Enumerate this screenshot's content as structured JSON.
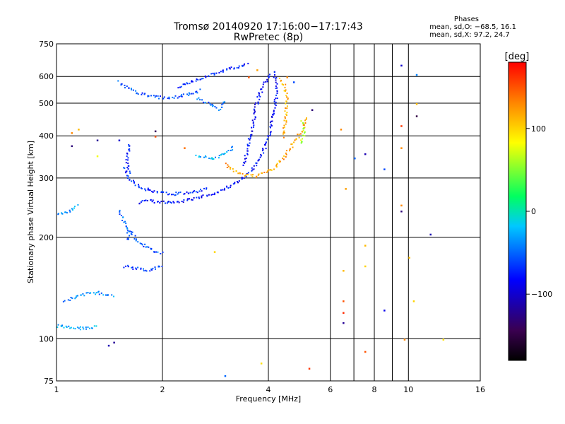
{
  "header": {
    "title": "Tromsø 20140920 17:16:00−17:17:43",
    "subtitle": "RwPretec (8p)"
  },
  "stats": {
    "heading": "Phases",
    "line_o": "mean, sd,O: −68.5, 16.1",
    "line_x": "mean, sd,X:  97.2, 24.7"
  },
  "chart_data": {
    "type": "scatter",
    "title": "Tromsø 20140920 17:16:00−17:17:43",
    "subtitle": "RwPretec (8p)",
    "xlabel": "Frequency [MHz]",
    "ylabel": "Stationary phase Virtual Height [km]",
    "x_scale": "log",
    "y_scale": "log",
    "xlim": [
      1,
      16
    ],
    "ylim": [
      75,
      750
    ],
    "x_ticks": [
      1,
      2,
      4,
      6,
      8,
      10,
      16
    ],
    "x_minor_ticks": [
      7,
      9
    ],
    "y_ticks": [
      75,
      100,
      200,
      300,
      400,
      500,
      600,
      750
    ],
    "grid": true,
    "colorbar": {
      "label": "[deg]",
      "range": [
        -180,
        180
      ],
      "ticks": [
        100,
        0,
        -100
      ],
      "colormap": [
        "#000000",
        "#3a0050",
        "#0000ff",
        "#00c8ff",
        "#00ff60",
        "#ffff00",
        "#ff8000",
        "#ff0000"
      ]
    },
    "traces": [
      {
        "phase": -80,
        "points": [
          [
            1.7,
            255
          ],
          [
            1.85,
            258
          ],
          [
            2.0,
            255
          ],
          [
            2.3,
            258
          ],
          [
            2.7,
            268
          ],
          [
            3.0,
            280
          ],
          [
            3.3,
            295
          ],
          [
            3.6,
            320
          ],
          [
            3.8,
            350
          ],
          [
            3.95,
            385
          ],
          [
            4.05,
            430
          ],
          [
            4.15,
            480
          ],
          [
            4.2,
            530
          ],
          [
            4.2,
            580
          ],
          [
            4.1,
            630
          ]
        ]
      },
      {
        "phase": -70,
        "points": [
          [
            1.55,
            325
          ],
          [
            1.6,
            300
          ],
          [
            1.7,
            285
          ],
          [
            1.85,
            275
          ],
          [
            2.1,
            270
          ],
          [
            2.4,
            272
          ],
          [
            2.7,
            280
          ]
        ]
      },
      {
        "phase": -75,
        "points": [
          [
            1.6,
            380
          ],
          [
            1.58,
            340
          ],
          [
            1.6,
            310
          ]
        ]
      },
      {
        "phase": -60,
        "points": [
          [
            1.5,
            580
          ],
          [
            1.65,
            545
          ],
          [
            1.85,
            525
          ],
          [
            2.05,
            520
          ],
          [
            2.3,
            530
          ],
          [
            2.55,
            550
          ]
        ]
      },
      {
        "phase": -70,
        "points": [
          [
            2.2,
            560
          ],
          [
            2.4,
            580
          ],
          [
            2.6,
            600
          ],
          [
            2.9,
            620
          ],
          [
            3.2,
            640
          ],
          [
            3.5,
            655
          ]
        ]
      },
      {
        "phase": -85,
        "points": [
          [
            3.4,
            330
          ],
          [
            3.5,
            380
          ],
          [
            3.6,
            430
          ],
          [
            3.65,
            480
          ],
          [
            3.75,
            530
          ],
          [
            3.9,
            580
          ],
          [
            4.05,
            620
          ]
        ]
      },
      {
        "phase": 120,
        "points": [
          [
            3.0,
            330
          ],
          [
            3.3,
            310
          ],
          [
            3.7,
            305
          ],
          [
            4.1,
            320
          ],
          [
            4.4,
            345
          ],
          [
            4.6,
            370
          ],
          [
            4.8,
            395
          ],
          [
            5.0,
            420
          ],
          [
            5.1,
            460
          ]
        ]
      },
      {
        "phase": 60,
        "points": [
          [
            4.9,
            380
          ],
          [
            5.0,
            400
          ],
          [
            5.05,
            420
          ],
          [
            4.95,
            445
          ]
        ]
      },
      {
        "phase": 115,
        "points": [
          [
            4.4,
            400
          ],
          [
            4.45,
            450
          ],
          [
            4.5,
            510
          ],
          [
            4.45,
            560
          ],
          [
            4.3,
            600
          ]
        ]
      },
      {
        "phase": -30,
        "points": [
          [
            2.5,
            350
          ],
          [
            2.8,
            345
          ],
          [
            3.0,
            355
          ],
          [
            3.2,
            375
          ]
        ]
      },
      {
        "phase": -55,
        "points": [
          [
            1.6,
            210
          ],
          [
            1.7,
            195
          ],
          [
            1.85,
            185
          ],
          [
            2.0,
            180
          ]
        ]
      },
      {
        "phase": -65,
        "points": [
          [
            1.55,
            165
          ],
          [
            1.65,
            163
          ],
          [
            1.8,
            160
          ],
          [
            2.0,
            165
          ]
        ]
      },
      {
        "phase": -40,
        "points": [
          [
            1.05,
            130
          ],
          [
            1.15,
            135
          ],
          [
            1.3,
            138
          ],
          [
            1.45,
            135
          ]
        ]
      },
      {
        "phase": -30,
        "points": [
          [
            1.0,
            110
          ],
          [
            1.1,
            108
          ],
          [
            1.2,
            108
          ],
          [
            1.3,
            109
          ]
        ]
      },
      {
        "phase": -35,
        "points": [
          [
            1.0,
            235
          ],
          [
            1.08,
            240
          ],
          [
            1.15,
            250
          ]
        ]
      },
      {
        "phase": -50,
        "points": [
          [
            1.5,
            240
          ],
          [
            1.55,
            225
          ],
          [
            1.6,
            210
          ],
          [
            1.58,
            195
          ]
        ]
      },
      {
        "phase": -50,
        "points": [
          [
            2.5,
            520
          ],
          [
            2.7,
            500
          ],
          [
            2.9,
            480
          ],
          [
            3.0,
            510
          ]
        ]
      }
    ],
    "points": [
      {
        "x": 6.5,
        "y": 130,
        "phase": 150
      },
      {
        "x": 6.5,
        "y": 120,
        "phase": 165
      },
      {
        "x": 6.5,
        "y": 112,
        "phase": -120
      },
      {
        "x": 6.5,
        "y": 160,
        "phase": 110
      },
      {
        "x": 6.6,
        "y": 280,
        "phase": 120
      },
      {
        "x": 6.4,
        "y": 420,
        "phase": 130
      },
      {
        "x": 7.0,
        "y": 345,
        "phase": -50
      },
      {
        "x": 7.5,
        "y": 355,
        "phase": -110
      },
      {
        "x": 7.5,
        "y": 190,
        "phase": 110
      },
      {
        "x": 7.5,
        "y": 165,
        "phase": 100
      },
      {
        "x": 7.5,
        "y": 92,
        "phase": 150
      },
      {
        "x": 8.5,
        "y": 122,
        "phase": -90
      },
      {
        "x": 8.5,
        "y": 320,
        "phase": -60
      },
      {
        "x": 9.5,
        "y": 250,
        "phase": 130
      },
      {
        "x": 9.5,
        "y": 240,
        "phase": -130
      },
      {
        "x": 9.5,
        "y": 370,
        "phase": 130
      },
      {
        "x": 9.5,
        "y": 430,
        "phase": 160
      },
      {
        "x": 9.5,
        "y": 650,
        "phase": -100
      },
      {
        "x": 9.7,
        "y": 100,
        "phase": 130
      },
      {
        "x": 10.0,
        "y": 175,
        "phase": 110
      },
      {
        "x": 10.3,
        "y": 130,
        "phase": 100
      },
      {
        "x": 10.5,
        "y": 500,
        "phase": 110
      },
      {
        "x": 10.5,
        "y": 460,
        "phase": -150
      },
      {
        "x": 11.5,
        "y": 205,
        "phase": -110
      },
      {
        "x": 12.5,
        "y": 100,
        "phase": 95
      },
      {
        "x": 10.5,
        "y": 610,
        "phase": -40
      },
      {
        "x": 5.2,
        "y": 82,
        "phase": 160
      },
      {
        "x": 3.8,
        "y": 85,
        "phase": 95
      },
      {
        "x": 3.0,
        "y": 78,
        "phase": -50
      },
      {
        "x": 2.8,
        "y": 182,
        "phase": 100
      },
      {
        "x": 1.4,
        "y": 96,
        "phase": -110
      },
      {
        "x": 1.45,
        "y": 98,
        "phase": -120
      },
      {
        "x": 1.1,
        "y": 375,
        "phase": -130
      },
      {
        "x": 1.3,
        "y": 390,
        "phase": -120
      },
      {
        "x": 1.15,
        "y": 420,
        "phase": 110
      },
      {
        "x": 1.1,
        "y": 410,
        "phase": 130
      },
      {
        "x": 1.9,
        "y": 415,
        "phase": -140
      },
      {
        "x": 1.9,
        "y": 400,
        "phase": 150
      },
      {
        "x": 2.3,
        "y": 370,
        "phase": 140
      },
      {
        "x": 3.5,
        "y": 600,
        "phase": 150
      },
      {
        "x": 3.7,
        "y": 630,
        "phase": 120
      },
      {
        "x": 4.5,
        "y": 600,
        "phase": 130
      },
      {
        "x": 4.7,
        "y": 580,
        "phase": -60
      },
      {
        "x": 5.3,
        "y": 480,
        "phase": -130
      },
      {
        "x": 1.3,
        "y": 350,
        "phase": 80
      },
      {
        "x": 1.5,
        "y": 390,
        "phase": -100
      }
    ]
  }
}
